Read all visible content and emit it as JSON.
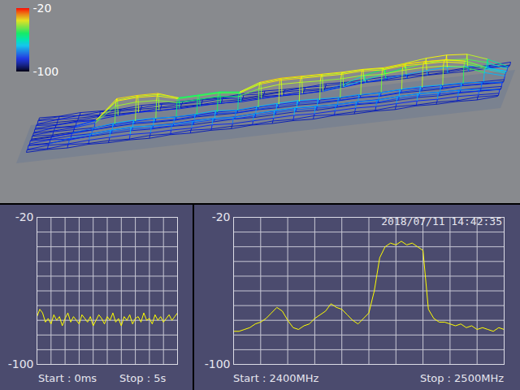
{
  "chart_data": [
    {
      "type": "waterfall",
      "frequencies": [
        2400,
        2405,
        2410,
        2415,
        2420,
        2425,
        2430,
        2435,
        2440,
        2445,
        2450,
        2455,
        2460,
        2465,
        2470,
        2475,
        2480,
        2485,
        2490,
        2495,
        2500
      ],
      "sweeps": [
        [
          -90,
          -88,
          -91,
          -86,
          -89,
          -90,
          -87,
          -89,
          -91,
          -88,
          -90,
          -89,
          -91,
          -88,
          -90,
          -87,
          -89,
          -91,
          -88,
          -90,
          -89
        ],
        [
          -89,
          -91,
          -87,
          -88,
          -90,
          -86,
          -89,
          -88,
          -90,
          -91,
          -87,
          -89,
          -86,
          -90,
          -88,
          -91,
          -89,
          -87,
          -90,
          -88,
          -91
        ],
        [
          -91,
          -87,
          -89,
          -80,
          -88,
          -90,
          -86,
          -84,
          -89,
          -90,
          -88,
          -87,
          -89,
          -91,
          -86,
          -88,
          -90,
          -89,
          -87,
          -91,
          -88
        ],
        [
          -88,
          -90,
          -86,
          -76,
          -84,
          -89,
          -87,
          -78,
          -86,
          -90,
          -89,
          -82,
          -80,
          -83,
          -88,
          -90,
          -87,
          -89,
          -91,
          -88,
          -90
        ],
        [
          -90,
          -89,
          -85,
          -72,
          -80,
          -88,
          -84,
          -72,
          -82,
          -88,
          -86,
          -46,
          -38,
          -36,
          -44,
          -86,
          -89,
          -90,
          -88,
          -89,
          -91
        ],
        [
          -89,
          -91,
          -84,
          -70,
          -79,
          -87,
          -83,
          -70,
          -80,
          -87,
          -85,
          -42,
          -35,
          -34,
          -40,
          -84,
          -88,
          -91,
          -89,
          -90,
          -88
        ],
        [
          -91,
          -88,
          -86,
          -73,
          -82,
          -89,
          -85,
          -71,
          -83,
          -89,
          -84,
          -44,
          -37,
          -35,
          -42,
          -85,
          -90,
          -88,
          -90,
          -87,
          -89
        ],
        [
          -88,
          -90,
          -85,
          -75,
          -83,
          -88,
          -86,
          -74,
          -84,
          -90,
          -86,
          -55,
          -50,
          -52,
          -56,
          -87,
          -89,
          -90,
          -88,
          -91,
          -90
        ],
        [
          -90,
          -87,
          -86,
          -74,
          -81,
          -90,
          -84,
          -73,
          -82,
          -88,
          -87,
          -54,
          -49,
          -51,
          -55,
          -86,
          -88,
          -91,
          -89,
          -88,
          -90
        ],
        [
          -89,
          -90,
          -84,
          -72,
          -80,
          -89,
          -85,
          -70,
          -81,
          -89,
          -86,
          -52,
          -48,
          -50,
          -53,
          -85,
          -90,
          -89,
          -87,
          -90,
          -91
        ],
        [
          -91,
          -89,
          -87,
          -76,
          -84,
          -88,
          -87,
          -75,
          -85,
          -90,
          -88,
          -58,
          -54,
          -55,
          -60,
          -88,
          -89,
          -90,
          -91,
          -88,
          -89
        ],
        [
          -88,
          -91,
          -86,
          -73,
          -82,
          -90,
          -85,
          -72,
          -83,
          -88,
          -86,
          -45,
          -38,
          -37,
          -43,
          -86,
          -88,
          -89,
          -90,
          -91,
          -88
        ],
        [
          -90,
          -88,
          -85,
          -71,
          -80,
          -89,
          -84,
          -70,
          -81,
          -89,
          -85,
          -40,
          -34,
          -33,
          -39,
          -84,
          -89,
          -91,
          -88,
          -90,
          -90
        ],
        [
          -89,
          -90,
          -84,
          -70,
          -79,
          -88,
          -83,
          -69,
          -80,
          -88,
          -84,
          -41,
          -35,
          -34,
          -40,
          -85,
          -90,
          -88,
          -89,
          -87,
          -91
        ],
        [
          -91,
          -87,
          -86,
          -72,
          -81,
          -90,
          -85,
          -71,
          -82,
          -90,
          -86,
          -43,
          -36,
          -35,
          -41,
          -86,
          -88,
          -90,
          -91,
          -89,
          -88
        ],
        [
          -88,
          -90,
          -85,
          -74,
          -83,
          -89,
          -86,
          -73,
          -84,
          -89,
          -87,
          -44,
          -37,
          -36,
          -42,
          -80,
          -78,
          -89,
          -90,
          -88,
          -90
        ],
        [
          -90,
          -89,
          -84,
          -73,
          -82,
          -88,
          -85,
          -72,
          -83,
          -88,
          -86,
          -42,
          -35,
          -35,
          -40,
          -70,
          -62,
          -84,
          -88,
          -91,
          -89
        ],
        [
          -89,
          -91,
          -86,
          -75,
          -84,
          -90,
          -86,
          -74,
          -85,
          -90,
          -85,
          -45,
          -38,
          -37,
          -43,
          -60,
          -52,
          -80,
          -89,
          -90,
          -88
        ],
        [
          -91,
          -88,
          -85,
          -72,
          -81,
          -89,
          -84,
          -71,
          -82,
          -88,
          -84,
          -41,
          -34,
          -33,
          -39,
          -52,
          -44,
          -76,
          -90,
          -88,
          -90
        ],
        [
          -88,
          -90,
          -84,
          -71,
          -80,
          -88,
          -83,
          -70,
          -81,
          -89,
          -85,
          -40,
          -35,
          -34,
          -38,
          -46,
          -38,
          -72,
          -88,
          -91,
          -89
        ],
        [
          -90,
          -89,
          -86,
          -73,
          -82,
          -90,
          -85,
          -72,
          -83,
          -90,
          -86,
          -42,
          -36,
          -35,
          -40,
          -44,
          -36,
          -70,
          -89,
          -90,
          -91
        ],
        [
          -89,
          -91,
          -85,
          -74,
          -83,
          -89,
          -86,
          -73,
          -84,
          -88,
          -87,
          -50,
          -45,
          -44,
          -49,
          -48,
          -40,
          -74,
          -90,
          -88,
          -89
        ],
        [
          -91,
          -88,
          -87,
          -78,
          -86,
          -90,
          -87,
          -77,
          -86,
          -89,
          -88,
          -70,
          -65,
          -66,
          -70,
          -62,
          -58,
          -80,
          -88,
          -90,
          -90
        ],
        [
          -88,
          -90,
          -89,
          -84,
          -88,
          -91,
          -89,
          -83,
          -88,
          -90,
          -89,
          -84,
          -82,
          -83,
          -85,
          -84,
          -82,
          -87,
          -89,
          -91,
          -88
        ]
      ],
      "colorbar_range": [
        -100,
        -20
      ],
      "colorbar_ticks": [
        -20,
        -100
      ]
    },
    {
      "type": "line",
      "x": [
        0,
        0.1,
        0.2,
        0.3,
        0.4,
        0.5,
        0.6,
        0.7,
        0.8,
        0.9,
        1,
        1.1,
        1.2,
        1.3,
        1.4,
        1.5,
        1.6,
        1.7,
        1.8,
        1.9,
        2,
        2.1,
        2.2,
        2.3,
        2.4,
        2.5,
        2.6,
        2.7,
        2.8,
        2.9,
        3,
        3.1,
        3.2,
        3.3,
        3.4,
        3.5,
        3.6,
        3.7,
        3.8,
        3.9,
        4,
        4.1,
        4.2,
        4.3,
        4.4,
        4.5,
        4.6,
        4.7,
        4.8,
        4.9,
        5
      ],
      "values": [
        -74,
        -70,
        -72,
        -77,
        -75,
        -78,
        -73,
        -76,
        -74,
        -79,
        -75,
        -72,
        -77,
        -74,
        -76,
        -78,
        -73,
        -75,
        -77,
        -74,
        -79,
        -76,
        -73,
        -75,
        -78,
        -74,
        -76,
        -72,
        -77,
        -75,
        -79,
        -74,
        -76,
        -73,
        -78,
        -75,
        -74,
        -77,
        -72,
        -76,
        -75,
        -78,
        -73,
        -76,
        -74,
        -77,
        -75,
        -73,
        -76,
        -74,
        -72
      ],
      "xlim": [
        0,
        5
      ],
      "ylim": [
        -100,
        -20
      ],
      "yticks": [
        -20,
        -100
      ],
      "grid": true,
      "tick_labels": "y",
      "color": "#ffff00",
      "start_label": "Start : 0ms",
      "stop_label": "Stop : 5s"
    },
    {
      "type": "line",
      "x": [
        2400,
        2402,
        2404,
        2406,
        2408,
        2410,
        2412,
        2414,
        2416,
        2418,
        2420,
        2422,
        2424,
        2426,
        2428,
        2430,
        2432,
        2434,
        2436,
        2438,
        2440,
        2442,
        2444,
        2446,
        2448,
        2450,
        2452,
        2454,
        2456,
        2458,
        2460,
        2462,
        2464,
        2466,
        2468,
        2470,
        2472,
        2474,
        2476,
        2478,
        2480,
        2482,
        2484,
        2486,
        2488,
        2490,
        2492,
        2494,
        2496,
        2498,
        2500
      ],
      "values": [
        -82,
        -82,
        -81,
        -80,
        -78,
        -77,
        -75,
        -72,
        -69,
        -71,
        -76,
        -80,
        -81,
        -79,
        -78,
        -75,
        -73,
        -71,
        -67,
        -69,
        -70,
        -73,
        -76,
        -78,
        -75,
        -72,
        -60,
        -42,
        -36,
        -34,
        -35,
        -33,
        -35,
        -34,
        -36,
        -38,
        -70,
        -75,
        -77,
        -77,
        -78,
        -79,
        -78,
        -80,
        -79,
        -81,
        -80,
        -81,
        -82,
        -80,
        -81
      ],
      "xlim": [
        2400,
        2500
      ],
      "ylim": [
        -100,
        -20
      ],
      "yticks": [
        -20,
        -100
      ],
      "grid": true,
      "tick_labels": "y",
      "color": "#ffff00",
      "start_label": "Start : 2400MHz",
      "stop_label": "Stop : 2500MHz",
      "timestamp": "2018/07/11 14:42:35"
    }
  ]
}
